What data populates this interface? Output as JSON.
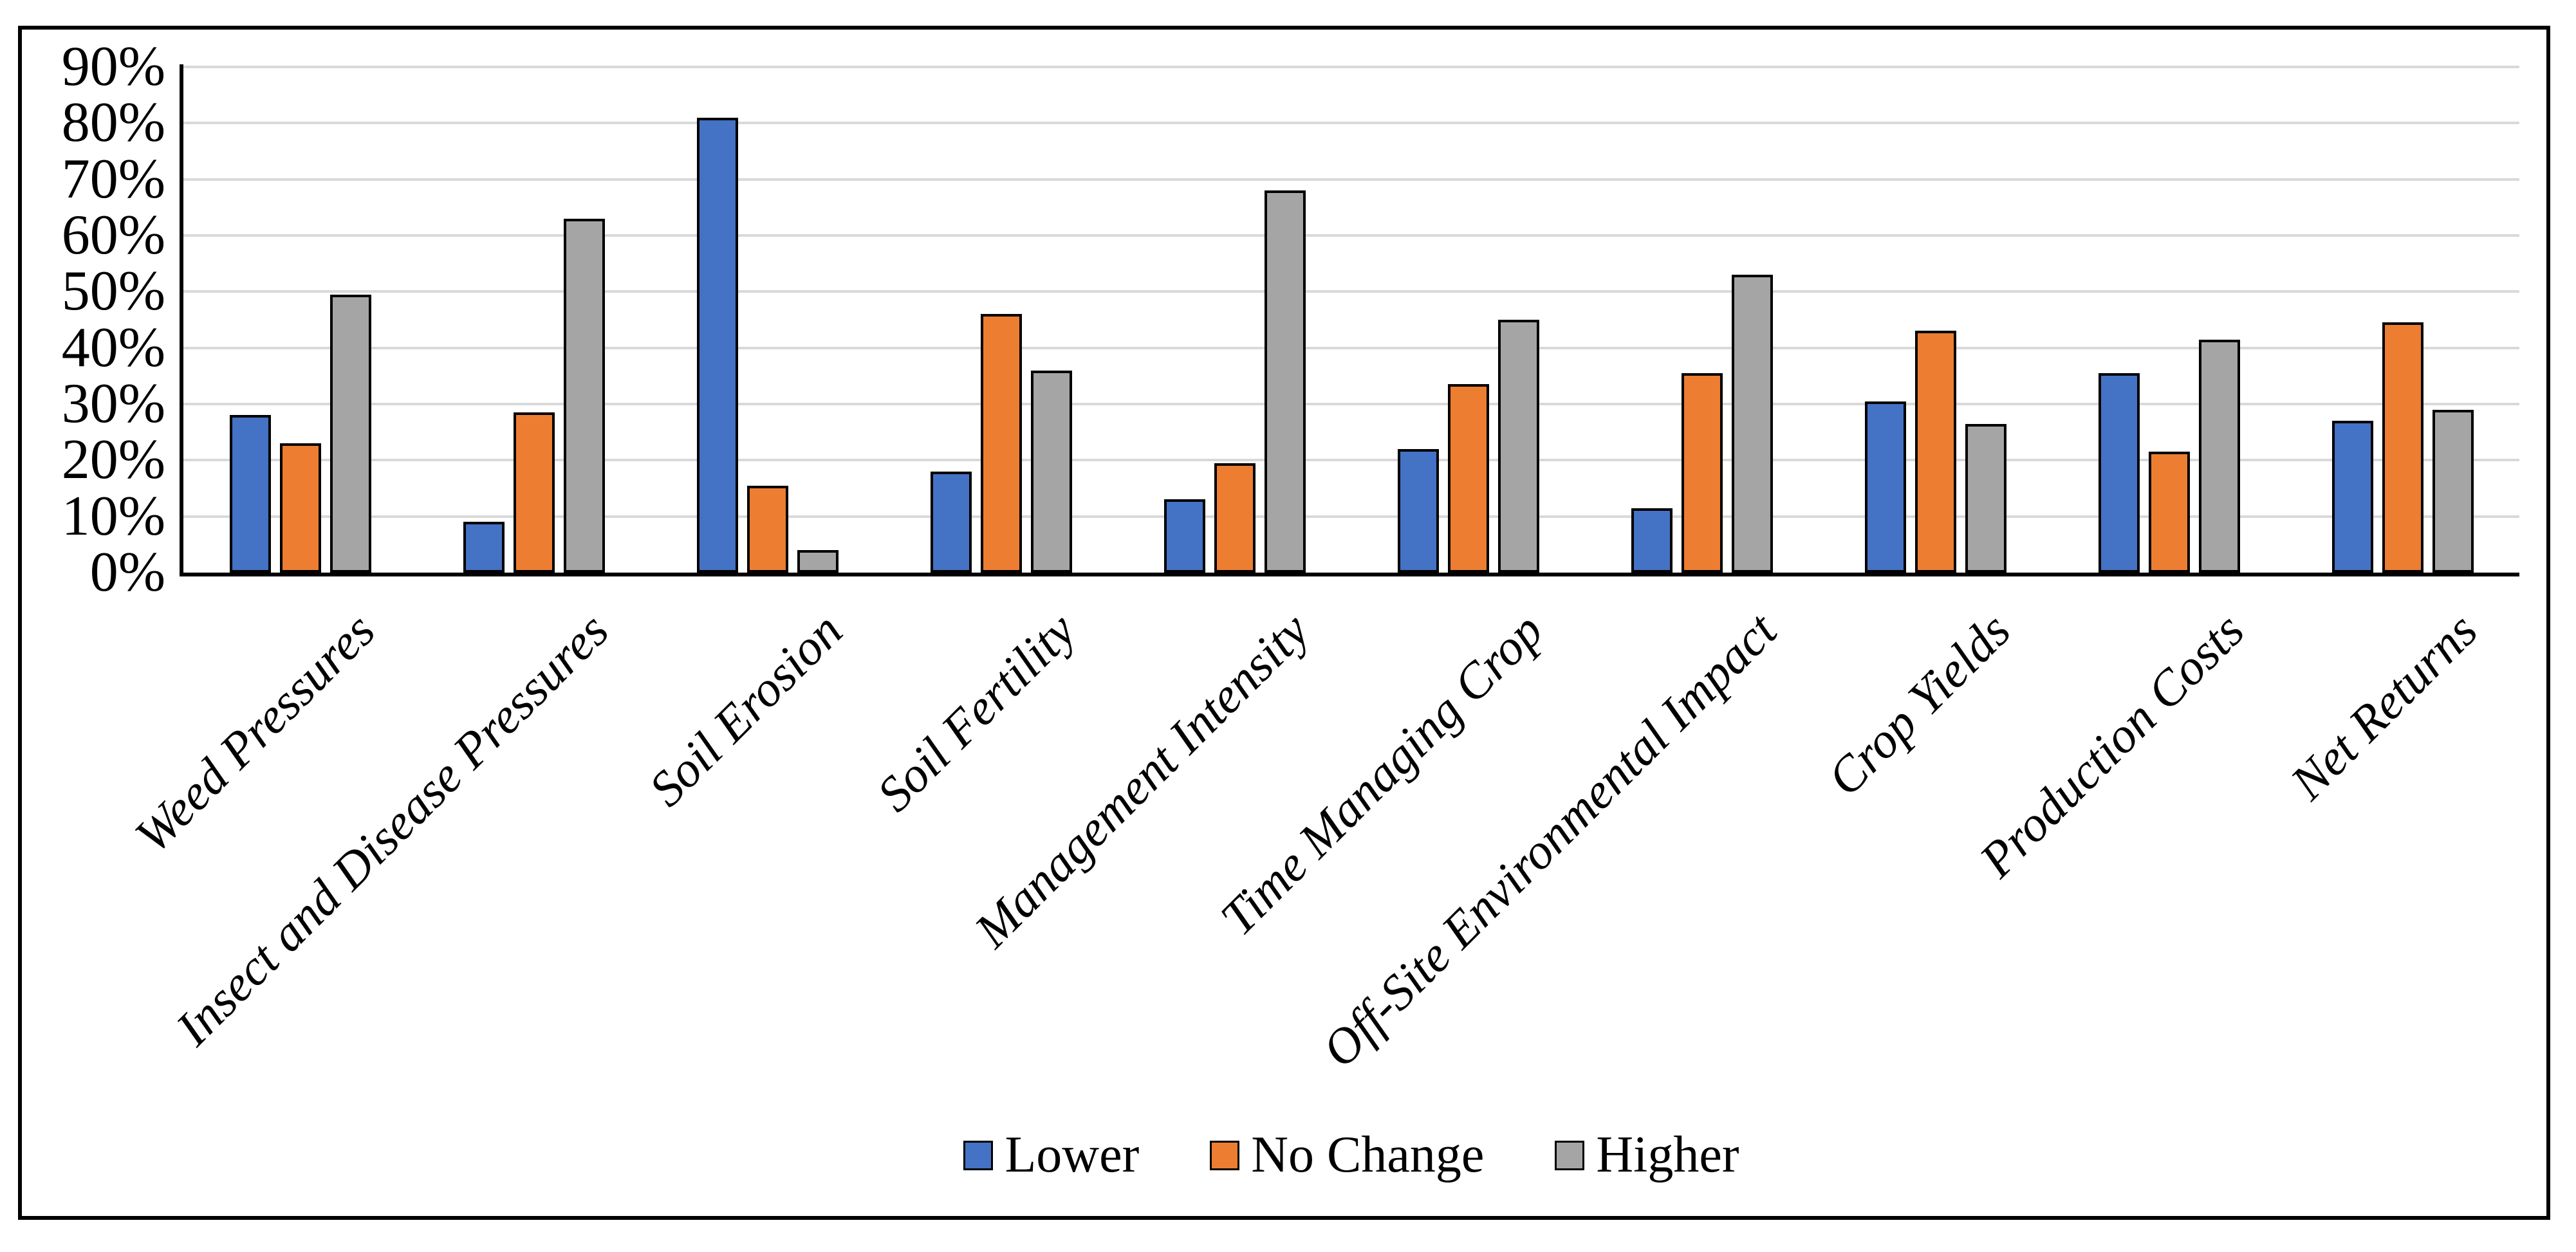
{
  "figure": {
    "background_color": "#ffffff",
    "border_color": "#000000"
  },
  "chart_data": {
    "type": "bar",
    "title": "",
    "xlabel": "",
    "ylabel": "",
    "categories": [
      "Weed Pressures",
      "Insect and Disease Pressures",
      "Soil Erosion",
      "Soil Fertility",
      "Management Intensity",
      "Time Managing Crop",
      "Off-Site Environmental Impact",
      "Crop Yields",
      "Production Costs",
      "Net Returns"
    ],
    "series": [
      {
        "name": "Lower",
        "color": "#4472C4",
        "values": [
          28,
          9,
          81,
          18,
          13,
          22,
          11.5,
          30.5,
          35.5,
          27
        ]
      },
      {
        "name": "No Change",
        "color": "#ED7D31",
        "values": [
          23,
          28.5,
          15.5,
          46,
          19.5,
          33.5,
          35.5,
          43,
          21.5,
          44.5
        ]
      },
      {
        "name": "Higher",
        "color": "#A5A5A5",
        "values": [
          49.5,
          63,
          4,
          36,
          68,
          45,
          53,
          26.5,
          41.5,
          29
        ]
      }
    ],
    "ylim": [
      0,
      90
    ],
    "yticks": [
      {
        "label": "0%",
        "value": 0
      },
      {
        "label": "10%",
        "value": 10
      },
      {
        "label": "20%",
        "value": 20
      },
      {
        "label": "30%",
        "value": 30
      },
      {
        "label": "40%",
        "value": 40
      },
      {
        "label": "50%",
        "value": 50
      },
      {
        "label": "60%",
        "value": 60
      },
      {
        "label": "70%",
        "value": 70
      },
      {
        "label": "80%",
        "value": 80
      },
      {
        "label": "90%",
        "value": 90
      }
    ],
    "grid": "horizontal",
    "gridline_color": "#D9D9D9",
    "axis_color": "#000000",
    "bar_border_color": "#000000",
    "legend_position": "bottom"
  }
}
